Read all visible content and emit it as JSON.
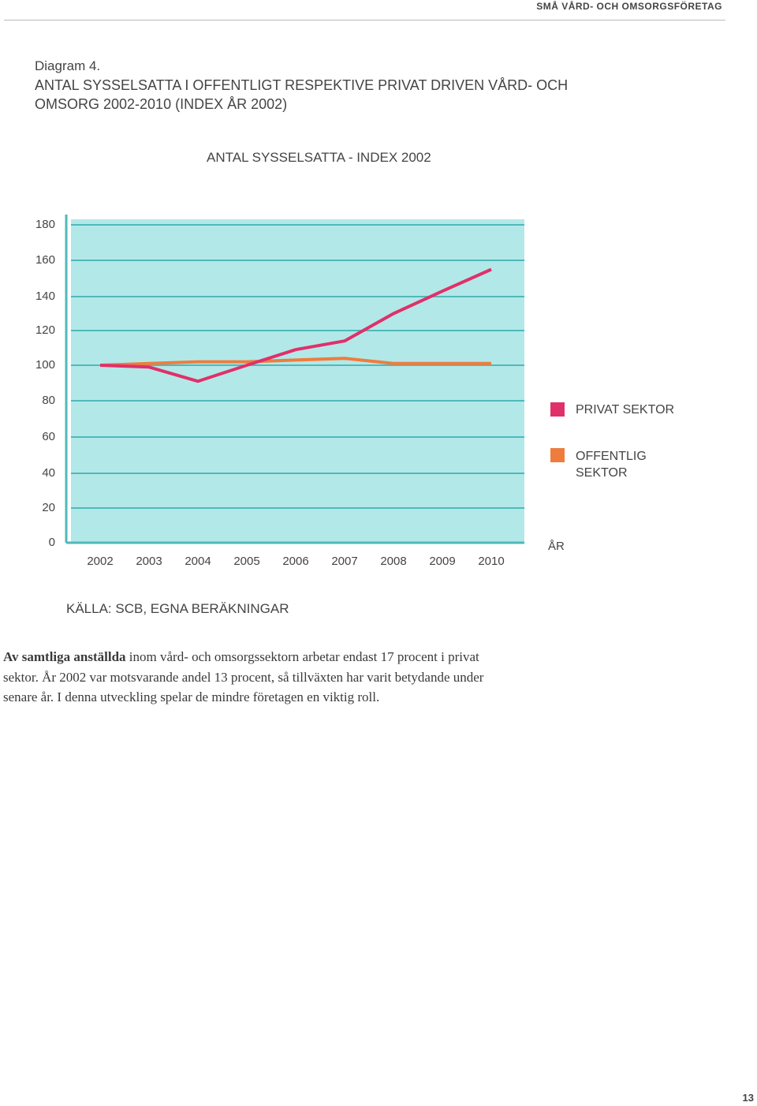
{
  "header": {
    "running_title": "SMÅ VÅRD- OCH OMSORGSFÖRETAG"
  },
  "figure": {
    "label": "Diagram 4.",
    "title": "ANTAL SYSSELSATTA I OFFENTLIGT RESPEKTIVE PRIVAT DRIVEN VÅRD- OCH OMSORG 2002-2010 (INDEX ÅR 2002)",
    "source": "KÄLLA: SCB, EGNA BERÄKNINGAR"
  },
  "chart_data": {
    "type": "line",
    "title": "ANTAL SYSSELSATTA - INDEX 2002",
    "xlabel": "ÅR",
    "ylabel": "",
    "categories": [
      "2002",
      "2003",
      "2004",
      "2005",
      "2006",
      "2007",
      "2008",
      "2009",
      "2010"
    ],
    "y_ticks": [
      0,
      20,
      40,
      60,
      80,
      100,
      120,
      140,
      160,
      180
    ],
    "ylim": [
      0,
      180
    ],
    "grid": true,
    "legend_position": "right",
    "background_color": "#b3e8e8",
    "series": [
      {
        "name": "PRIVAT SEKTOR",
        "color": "#e0306a",
        "values": [
          100,
          99,
          91,
          100,
          109,
          114,
          130,
          143,
          155
        ]
      },
      {
        "name": "OFFENTLIG SEKTOR",
        "color": "#ee7d3d",
        "values": [
          100,
          101,
          102,
          102,
          103,
          104,
          101,
          101,
          101
        ]
      }
    ]
  },
  "legend": {
    "private_line1": "PRIVAT SEKTOR",
    "public_line1": "OFFENTLIG",
    "public_line2": "SEKTOR"
  },
  "body": {
    "lead": "Av samtliga anställda",
    "text": " inom vård- och omsorgssektorn arbetar endast 17 procent i privat sektor. År 2002 var motsvarande andel 13 procent, så tillväxten har varit betydande under senare år. I denna utveckling spelar de mindre företagen en viktig roll."
  },
  "page": {
    "number": "13"
  }
}
